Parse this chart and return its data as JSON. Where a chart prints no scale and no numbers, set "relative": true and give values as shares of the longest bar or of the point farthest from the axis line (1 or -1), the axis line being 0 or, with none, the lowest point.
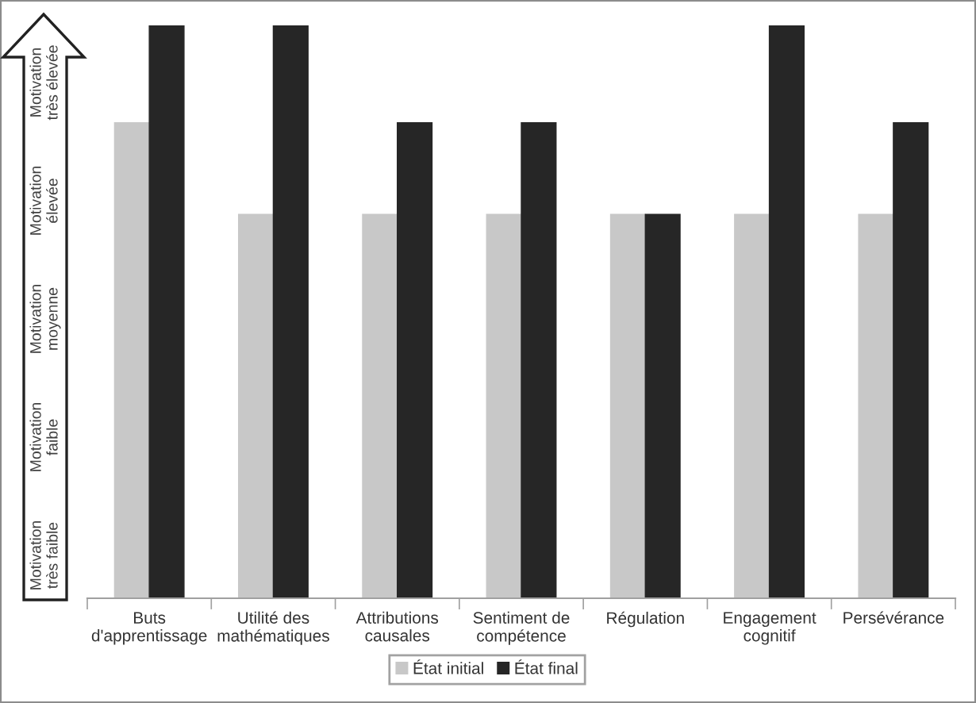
{
  "chart_data": {
    "type": "bar",
    "relative": true,
    "categories": [
      "Buts\nd'apprentissage",
      "Utilité des\nmathématiques",
      "Attributions\ncausales",
      "Sentiment de\ncompétence",
      "Régulation",
      "Engagement\ncognitif",
      "Persévérance"
    ],
    "series": [
      {
        "name": "État initial",
        "color": "#c8c8c8",
        "values": [
          0.83,
          0.67,
          0.67,
          0.67,
          0.67,
          0.67,
          0.67
        ]
      },
      {
        "name": "État final",
        "color": "#262626",
        "values": [
          1,
          1,
          0.83,
          0.83,
          0.67,
          1,
          0.83
        ]
      }
    ],
    "annotations": [
      "Motivation\ntrès faible",
      "Motivation\nfaible",
      "Motivation\nmoyenne",
      "Motivation\nélevée",
      "Motivation\ntrès élevée"
    ],
    "legend": "bottom"
  }
}
